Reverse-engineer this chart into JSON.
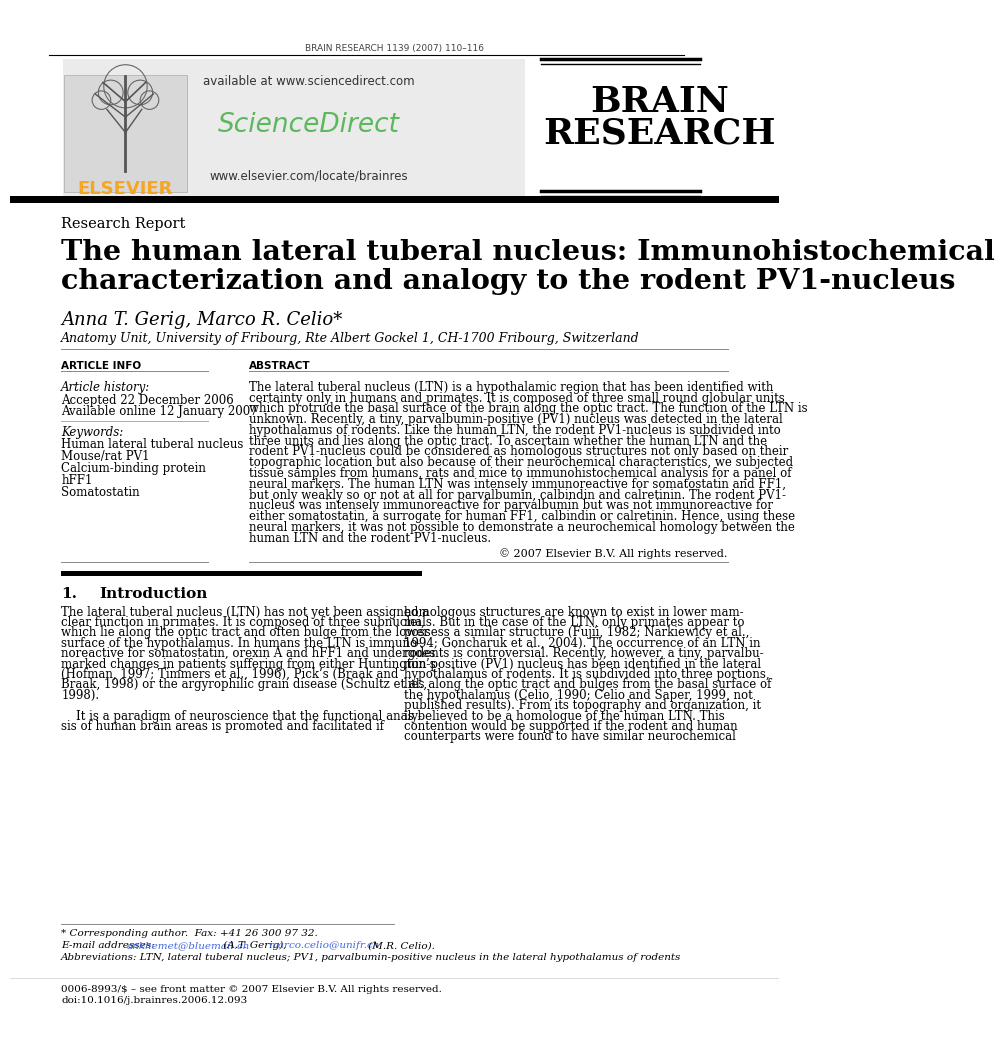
{
  "journal_header": "BRAIN RESEARCH 1139 (2007) 110–116",
  "elsevier_text": "ELSEVIER",
  "available_text": "available at www.sciencedirect.com",
  "sciencedirect_text": "ScienceDirect",
  "website_text": "www.elsevier.com/locate/brainres",
  "brain_research_line1": "BRAIN",
  "brain_research_line2": "RESEARCH",
  "section_label": "Research Report",
  "title_line1": "The human lateral tuberal nucleus: Immunohistochemical",
  "title_line2": "characterization and analogy to the rodent PV1-nucleus",
  "authors": "Anna T. Gerig, Marco R. Celio*",
  "affiliation": "Anatomy Unit, University of Fribourg, Rte Albert Gockel 1, CH-1700 Fribourg, Switzerland",
  "article_info_header": "ARTICLE INFO",
  "abstract_header": "ABSTRACT",
  "article_history_label": "Article history:",
  "accepted_text": "Accepted 22 December 2006",
  "available_online_text": "Available online 12 January 2007",
  "keywords_label": "Keywords:",
  "keywords": [
    "Human lateral tuberal nucleus",
    "Mouse/rat PV1",
    "Calcium-binding protein",
    "hFF1",
    "Somatostatin"
  ],
  "abstract_lines": [
    "The lateral tuberal nucleus (LTN) is a hypothalamic region that has been identified with",
    "certainty only in humans and primates. It is composed of three small round globular units",
    "which protrude the basal surface of the brain along the optic tract. The function of the LTN is",
    "unknown. Recently, a tiny, parvalbumin-positive (PV1) nucleus was detected in the lateral",
    "hypothalamus of rodents. Like the human LTN, the rodent PV1-nucleus is subdivided into",
    "three units and lies along the optic tract. To ascertain whether the human LTN and the",
    "rodent PV1-nucleus could be considered as homologous structures not only based on their",
    "topographic location but also because of their neurochemical characteristics, we subjected",
    "tissue samples from humans, rats and mice to immunohistochemical analysis for a panel of",
    "neural markers. The human LTN was intensely immunoreactive for somatostatin and FF1,",
    "but only weakly so or not at all for parvalbumin, calbindin and calretinin. The rodent PV1-",
    "nucleus was intensely immunoreactive for parvalbumin but was not immunoreactive for",
    "either somatostatin, a surrogate for human FF1, calbindin or calretinin. Hence, using these",
    "neural markers, it was not possible to demonstrate a neurochemical homology between the",
    "human LTN and the rodent PV1-nucleus."
  ],
  "copyright_text": "© 2007 Elsevier B.V. All rights reserved.",
  "intro_number": "1.",
  "intro_title": "Introduction",
  "intro_col1_lines": [
    "The lateral tuberal nucleus (LTN) has not yet been assigned a",
    "clear function in primates. It is composed of three subnuclei,",
    "which lie along the optic tract and often bulge from the lower",
    "surface of the hypothalamus. In humans the LTN is immuno-",
    "noreactive for somatostatin, orexin A and hFF1 and undergoes",
    "marked changes in patients suffering from either Huntington’s",
    "(Hofman, 1997; Timmers et al., 1996), Pick’s (Braak and",
    "Braak, 1998) or the argyrophilic grain disease (Schultz et al.,",
    "1998).",
    "",
    "    It is a paradigm of neuroscience that the functional analy-",
    "sis of human brain areas is promoted and facilitated if"
  ],
  "intro_col2_lines": [
    "homologous structures are known to exist in lower mam-",
    "mals. But in the case of the LTN, only primates appear to",
    "possess a similar structure (Fujii, 1982; Narkiewicy et al.,",
    "1994; Goncharuk et al., 2004). The occurrence of an LTN in",
    "rodents is controversial. Recently, however, a tiny, parvalbu-",
    "min-positive (PV1) nucleus has been identified in the lateral",
    "hypothalamus of rodents. It is subdivided into three portions,",
    "lies along the optic tract and bulges from the basal surface of",
    "the hypothalamus (Celio, 1990; Celio and Saper, 1999, not",
    "published results). From its topography and organization, it",
    "is believed to be a homologue of the human LTN. This",
    "contention would be supported if the rodent and human",
    "counterparts were found to have similar neurochemical"
  ],
  "footnote_star": "* Corresponding author.  Fax: +41 26 300 97 32.",
  "footnote_email_prefix": "E-mail addresses: ",
  "footnote_email1": "ankhemet@bluemail.ch",
  "footnote_email1_mid": " (A.T. Gerig), ",
  "footnote_email2": "marco.celio@unifr.ch",
  "footnote_email2_suffix": " (M.R. Celio).",
  "footnote_abbrev": "Abbreviations: LTN, lateral tuberal nucleus; PV1, parvalbumin-positive nucleus in the lateral hypothalamus of rodents",
  "footer_issn": "0006-8993/$ – see front matter © 2007 Elsevier B.V. All rights reserved.",
  "footer_doi": "doi:10.1016/j.brainres.2006.12.093",
  "bg_color": "#ffffff",
  "header_bg": "#ebebeb",
  "elsevier_color": "#F5A623",
  "sd_color": "#5cb85c",
  "link_color": "#4169E1"
}
